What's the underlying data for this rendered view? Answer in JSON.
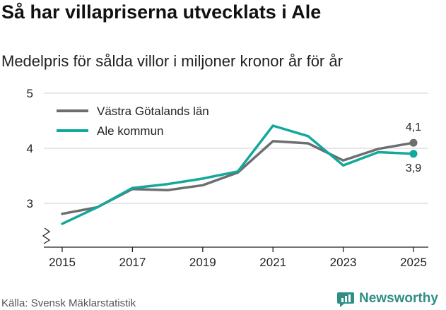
{
  "title": "Så har villapriserna utvecklats i Ale",
  "subtitle": "Medelpris för sålda villor i miljoner kronor år för år",
  "source": "Källa: Svensk Mäklarstatistik",
  "brand": "Newsworthy",
  "colors": {
    "series_gray": "#6d6e70",
    "series_teal": "#14a79c",
    "grid": "#cfcfcf",
    "axis": "#222222",
    "brand": "#2f8f84"
  },
  "chart_data": {
    "type": "line",
    "title": "Så har villapriserna utvecklats i Ale",
    "subtitle": "Medelpris för sålda villor i miljoner kronor år för år",
    "xlabel": "",
    "ylabel": "",
    "x": [
      2015,
      2016,
      2017,
      2018,
      2019,
      2020,
      2021,
      2022,
      2023,
      2024,
      2025
    ],
    "x_tick_labels": [
      "2015",
      "2017",
      "2019",
      "2021",
      "2023",
      "2025"
    ],
    "y_tick_labels": [
      "3",
      "4",
      "5"
    ],
    "ylim": [
      2.3,
      5
    ],
    "y_axis_break": true,
    "grid": true,
    "legend_position": "top-left",
    "series": [
      {
        "name": "Västra Götalands län",
        "color": "#6d6e70",
        "values": [
          2.81,
          2.93,
          3.26,
          3.24,
          3.33,
          3.56,
          4.13,
          4.09,
          3.78,
          3.99,
          4.1
        ],
        "end_label": "4,1"
      },
      {
        "name": "Ale kommun",
        "color": "#14a79c",
        "values": [
          2.63,
          2.93,
          3.28,
          3.35,
          3.45,
          3.58,
          4.41,
          4.22,
          3.69,
          3.93,
          3.9
        ],
        "end_label": "3,9"
      }
    ]
  }
}
